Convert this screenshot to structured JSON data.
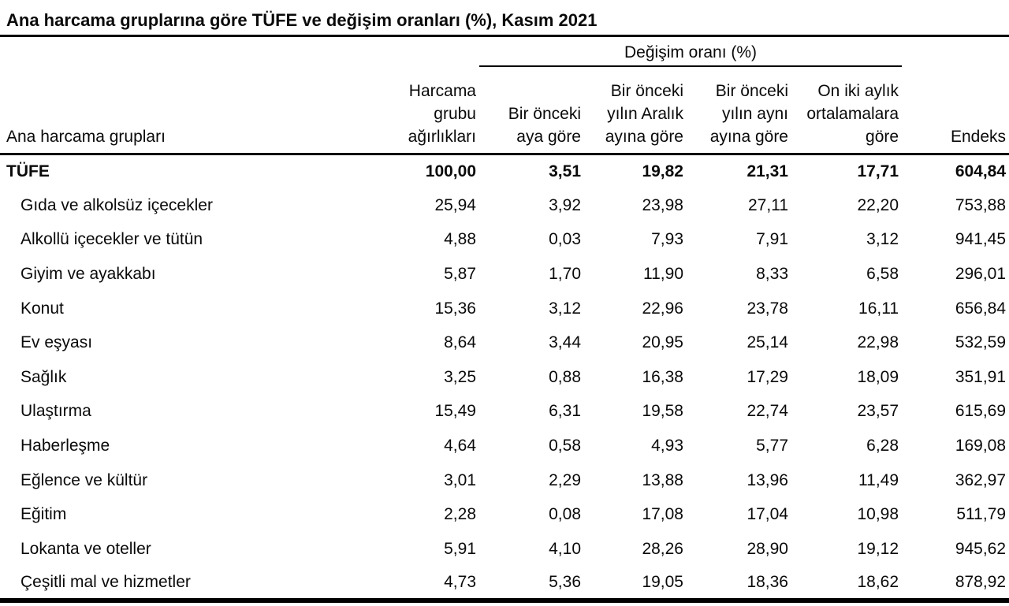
{
  "title": "Ana harcama gruplarına göre TÜFE ve değişim oranları (%), Kasım 2021",
  "table": {
    "group_header": "Değişim oranı (%)",
    "columns": {
      "label": "Ana harcama grupları",
      "weights": "Harcama\ngrubu\nağırlıkları",
      "monthly": "Bir önceki\naya göre",
      "since_december": "Bir önceki\nyılın Aralık\nayına göre",
      "annual": "Bir önceki\nyılın aynı\nayına göre",
      "twelve_month_avg": "On iki aylık\nortalamalara\ngöre",
      "index": "Endeks"
    },
    "rows": [
      {
        "label": "TÜFE",
        "bold": true,
        "values": [
          "100,00",
          "3,51",
          "19,82",
          "21,31",
          "17,71",
          "604,84"
        ]
      },
      {
        "label": "Gıda ve alkolsüz içecekler",
        "bold": false,
        "values": [
          "25,94",
          "3,92",
          "23,98",
          "27,11",
          "22,20",
          "753,88"
        ]
      },
      {
        "label": "Alkollü içecekler ve tütün",
        "bold": false,
        "values": [
          "4,88",
          "0,03",
          "7,93",
          "7,91",
          "3,12",
          "941,45"
        ]
      },
      {
        "label": "Giyim ve ayakkabı",
        "bold": false,
        "values": [
          "5,87",
          "1,70",
          "11,90",
          "8,33",
          "6,58",
          "296,01"
        ]
      },
      {
        "label": "Konut",
        "bold": false,
        "values": [
          "15,36",
          "3,12",
          "22,96",
          "23,78",
          "16,11",
          "656,84"
        ]
      },
      {
        "label": "Ev eşyası",
        "bold": false,
        "values": [
          "8,64",
          "3,44",
          "20,95",
          "25,14",
          "22,98",
          "532,59"
        ]
      },
      {
        "label": "Sağlık",
        "bold": false,
        "values": [
          "3,25",
          "0,88",
          "16,38",
          "17,29",
          "18,09",
          "351,91"
        ]
      },
      {
        "label": "Ulaştırma",
        "bold": false,
        "values": [
          "15,49",
          "6,31",
          "19,58",
          "22,74",
          "23,57",
          "615,69"
        ]
      },
      {
        "label": "Haberleşme",
        "bold": false,
        "values": [
          "4,64",
          "0,58",
          "4,93",
          "5,77",
          "6,28",
          "169,08"
        ]
      },
      {
        "label": "Eğlence ve kültür",
        "bold": false,
        "values": [
          "3,01",
          "2,29",
          "13,88",
          "13,96",
          "11,49",
          "362,97"
        ]
      },
      {
        "label": "Eğitim",
        "bold": false,
        "values": [
          "2,28",
          "0,08",
          "17,08",
          "17,04",
          "10,98",
          "511,79"
        ]
      },
      {
        "label": "Lokanta ve oteller",
        "bold": false,
        "values": [
          "5,91",
          "4,10",
          "28,26",
          "28,90",
          "19,12",
          "945,62"
        ]
      },
      {
        "label": "Çeşitli mal ve hizmetler",
        "bold": false,
        "values": [
          "4,73",
          "5,36",
          "19,05",
          "18,36",
          "18,62",
          "878,92"
        ]
      }
    ]
  },
  "colors": {
    "text": "#0a0a0a",
    "line": "#000000",
    "background": "#ffffff"
  },
  "chart_data": {
    "type": "table",
    "title": "Ana harcama gruplarına göre TÜFE ve değişim oranları (%), Kasım 2021",
    "group_header": "Değişim oranı (%)",
    "columns": [
      "Ana harcama grupları",
      "Harcama grubu ağırlıkları",
      "Bir önceki aya göre",
      "Bir önceki yılın Aralık ayına göre",
      "Bir önceki yılın aynı ayına göre",
      "On iki aylık ortalamalara göre",
      "Endeks"
    ],
    "rows": [
      [
        "TÜFE",
        100.0,
        3.51,
        19.82,
        21.31,
        17.71,
        604.84
      ],
      [
        "Gıda ve alkolsüz içecekler",
        25.94,
        3.92,
        23.98,
        27.11,
        22.2,
        753.88
      ],
      [
        "Alkollü içecekler ve tütün",
        4.88,
        0.03,
        7.93,
        7.91,
        3.12,
        941.45
      ],
      [
        "Giyim ve ayakkabı",
        5.87,
        1.7,
        11.9,
        8.33,
        6.58,
        296.01
      ],
      [
        "Konut",
        15.36,
        3.12,
        22.96,
        23.78,
        16.11,
        656.84
      ],
      [
        "Ev eşyası",
        8.64,
        3.44,
        20.95,
        25.14,
        22.98,
        532.59
      ],
      [
        "Sağlık",
        3.25,
        0.88,
        16.38,
        17.29,
        18.09,
        351.91
      ],
      [
        "Ulaştırma",
        15.49,
        6.31,
        19.58,
        22.74,
        23.57,
        615.69
      ],
      [
        "Haberleşme",
        4.64,
        0.58,
        4.93,
        5.77,
        6.28,
        169.08
      ],
      [
        "Eğlence ve kültür",
        3.01,
        2.29,
        13.88,
        13.96,
        11.49,
        362.97
      ],
      [
        "Eğitim",
        2.28,
        0.08,
        17.08,
        17.04,
        10.98,
        511.79
      ],
      [
        "Lokanta ve oteller",
        5.91,
        4.1,
        28.26,
        28.9,
        19.12,
        945.62
      ],
      [
        "Çeşitli mal ve hizmetler",
        4.73,
        5.36,
        19.05,
        18.36,
        18.62,
        878.92
      ]
    ]
  }
}
